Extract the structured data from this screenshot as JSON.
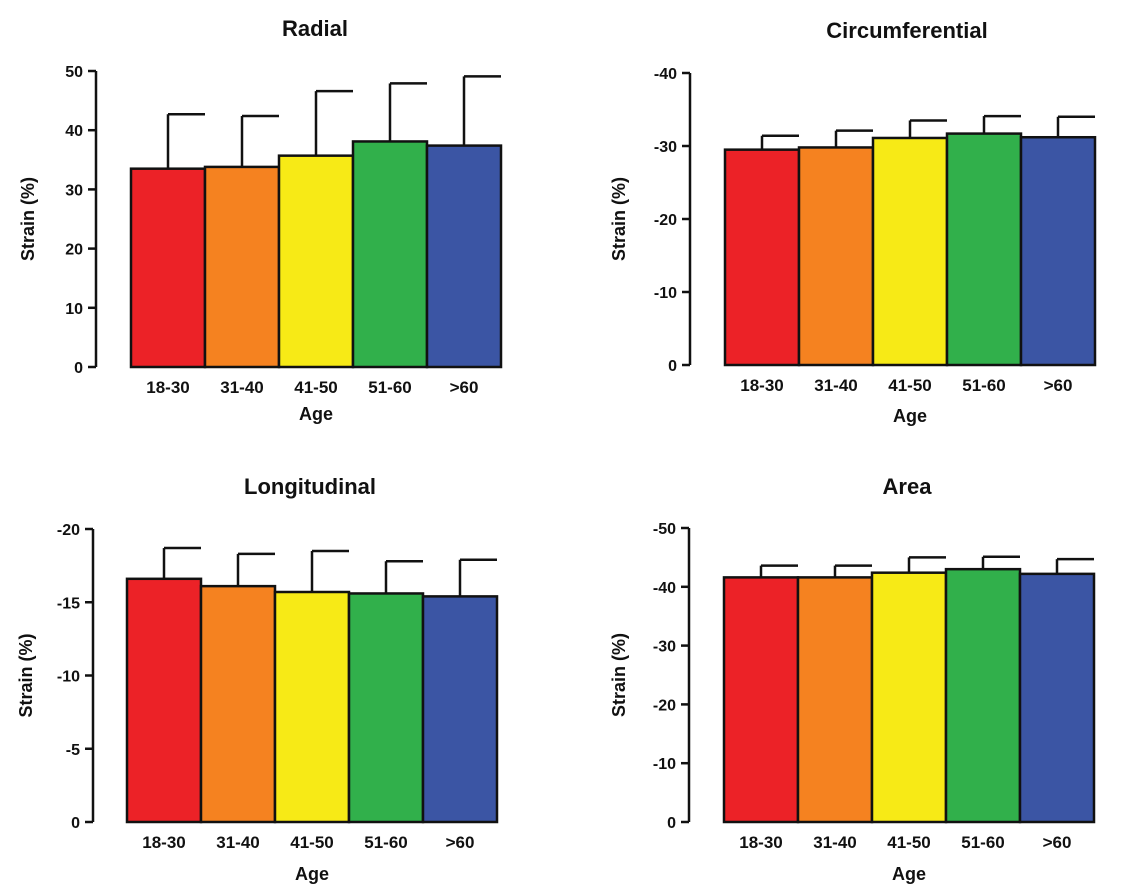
{
  "colors": [
    "#ec2227",
    "#f58220",
    "#f7ea16",
    "#31b04b",
    "#3b55a4"
  ],
  "chart_data": [
    {
      "type": "bar",
      "title": "Radial",
      "xlabel": "Age",
      "ylabel": "Strain (%)",
      "categories": [
        "18-30",
        "31-40",
        "41-50",
        "51-60",
        ">60"
      ],
      "values": [
        33.5,
        33.8,
        35.7,
        38.1,
        37.4
      ],
      "error_upper": [
        42.7,
        42.4,
        46.6,
        47.9,
        49.1
      ],
      "ylim": [
        0,
        50
      ],
      "yticks": [
        0,
        10,
        20,
        30,
        40,
        50
      ],
      "ytick_labels": [
        "0",
        "10",
        "20",
        "30",
        "40",
        "50"
      ],
      "grid": false
    },
    {
      "type": "bar",
      "title": "Circumferential",
      "xlabel": "Age",
      "ylabel": "Strain (%)",
      "categories": [
        "18-30",
        "31-40",
        "41-50",
        "51-60",
        ">60"
      ],
      "values": [
        -29.5,
        -29.8,
        -31.1,
        -31.7,
        -31.2
      ],
      "error_upper": [
        -31.4,
        -32.1,
        -33.5,
        -34.1,
        -34.0
      ],
      "ylim": [
        0,
        -40
      ],
      "yticks": [
        0,
        -10,
        -20,
        -30,
        -40
      ],
      "ytick_labels": [
        "0",
        "-10",
        "-20",
        "-30",
        "-40"
      ],
      "grid": false
    },
    {
      "type": "bar",
      "title": "Longitudinal",
      "xlabel": "Age",
      "ylabel": "Strain (%)",
      "categories": [
        "18-30",
        "31-40",
        "41-50",
        "51-60",
        ">60"
      ],
      "values": [
        -16.6,
        -16.1,
        -15.7,
        -15.6,
        -15.4
      ],
      "error_upper": [
        -18.7,
        -18.3,
        -18.5,
        -17.8,
        -17.9
      ],
      "ylim": [
        0,
        -20
      ],
      "yticks": [
        0,
        -5,
        -10,
        -15,
        -20
      ],
      "ytick_labels": [
        "0",
        "-5",
        "-10",
        "-15",
        "-20"
      ],
      "grid": false
    },
    {
      "type": "bar",
      "title": "Area",
      "xlabel": "Age",
      "ylabel": "Strain (%)",
      "categories": [
        "18-30",
        "31-40",
        "41-50",
        "51-60",
        ">60"
      ],
      "values": [
        -41.6,
        -41.6,
        -42.4,
        -43.0,
        -42.2
      ],
      "error_upper": [
        -43.6,
        -43.6,
        -45.0,
        -45.1,
        -44.7
      ],
      "ylim": [
        0,
        -50
      ],
      "yticks": [
        0,
        -10,
        -20,
        -30,
        -40,
        -50
      ],
      "ytick_labels": [
        "0",
        "-10",
        "-20",
        "-30",
        "-40",
        "-50"
      ],
      "grid": false
    }
  ]
}
